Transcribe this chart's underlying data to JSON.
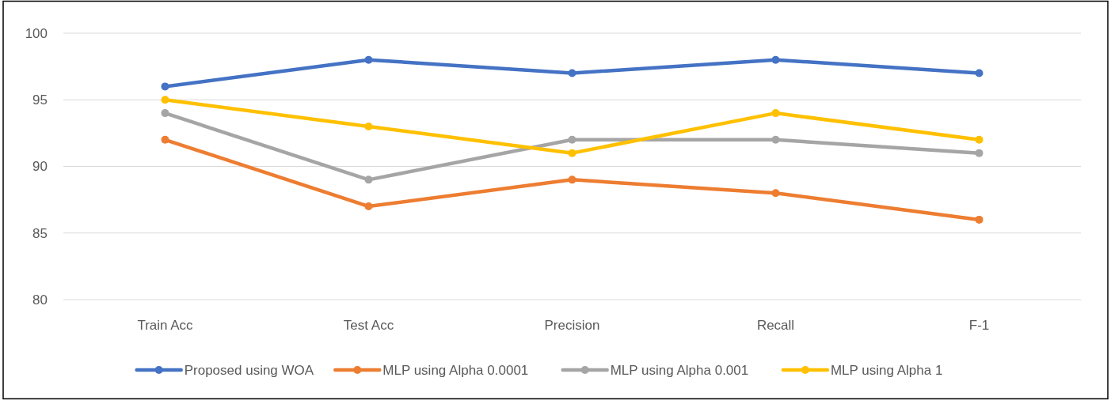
{
  "chart_data": {
    "type": "line",
    "categories": [
      "Train Acc",
      "Test Acc",
      "Precision",
      "Recall",
      "F-1"
    ],
    "series": [
      {
        "name": "Proposed using WOA",
        "color": "#4472c4",
        "values": [
          96,
          98,
          97,
          98,
          97
        ]
      },
      {
        "name": "MLP using Alpha 0.0001",
        "color": "#ed7d31",
        "values": [
          92,
          87,
          89,
          88,
          86
        ]
      },
      {
        "name": "MLP using Alpha 0.001",
        "color": "#a5a5a5",
        "values": [
          94,
          89,
          92,
          92,
          91
        ]
      },
      {
        "name": "MLP using Alpha 1",
        "color": "#ffc000",
        "values": [
          95,
          93,
          91,
          94,
          92
        ]
      }
    ],
    "ylim": [
      80,
      100
    ],
    "yticks": [
      80,
      85,
      90,
      95,
      100
    ],
    "grid": "y",
    "legend": "bottom",
    "marker": "circle",
    "line_style": "solid"
  }
}
